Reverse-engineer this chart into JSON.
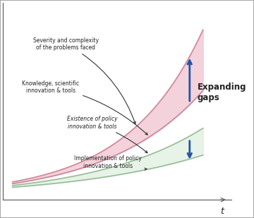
{
  "title": "",
  "xlabel": "t",
  "background_color": "#ffffff",
  "border_color": "#aaaaaa",
  "curve1_color": "#e8a0b0",
  "curve2_color": "#d4b8c0",
  "curve3_color": "#c8d8c0",
  "curve4_color": "#b8c8b0",
  "fill_pink_color": "#f0c0cc",
  "fill_green_color": "#d0e8d0",
  "arrow_color": "#2255aa",
  "text_color": "#222222",
  "label1": "Severity and complexity\nof the problems faced",
  "label2": "Knowledge, scientific\ninnovation & tools",
  "label3": "Existence of policy\ninnovation & tools",
  "label4": "Implementation of policy\ninnovation & tools",
  "expanding_gaps_text": "Expanding\ngaps",
  "x_range": [
    0,
    1.0
  ],
  "y_range": [
    0,
    1.0
  ]
}
